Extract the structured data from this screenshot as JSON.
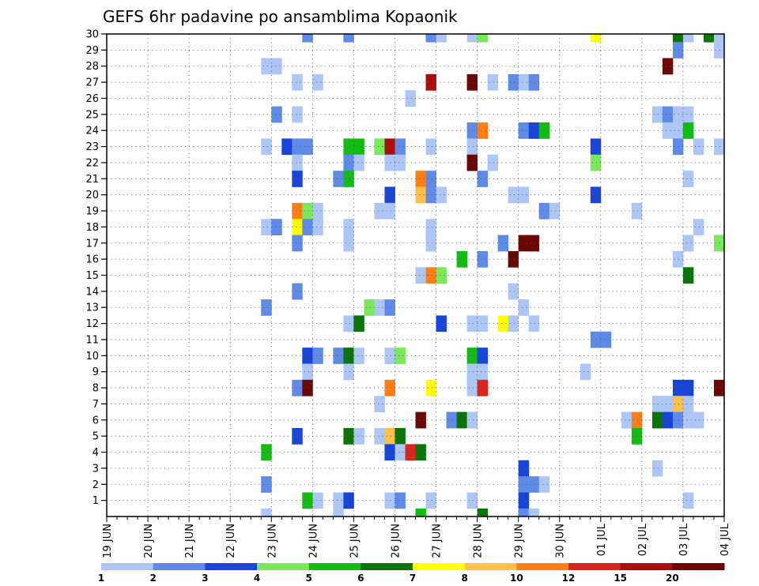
{
  "chart_data": {
    "type": "heatmap",
    "title": "GEFS 6hr padavine po ansamblima Kopaonik",
    "xlabel": "",
    "ylabel": "",
    "x_tick_labels": [
      "19 JUN",
      "20 JUN",
      "21 JUN",
      "22 JUN",
      "23 JUN",
      "24 JUN",
      "25 JUN",
      "26 JUN",
      "27 JUN",
      "28 JUN",
      "29 JUN",
      "30 JUN",
      "01 JUL",
      "02 JUL",
      "03 JUL",
      "04 JUL"
    ],
    "y_tick_labels": [
      "1",
      "2",
      "3",
      "4",
      "5",
      "6",
      "7",
      "8",
      "9",
      "10",
      "11",
      "12",
      "13",
      "14",
      "15",
      "16",
      "17",
      "18",
      "19",
      "20",
      "21",
      "22",
      "23",
      "24",
      "25",
      "26",
      "27",
      "28",
      "29",
      "30"
    ],
    "x_range_days": [
      0,
      15
    ],
    "y_range": [
      0,
      30
    ],
    "time_step_days": 0.25,
    "grid": "dotted",
    "color_levels": [
      "1",
      "2",
      "3",
      "4",
      "5",
      "6",
      "7",
      "8",
      "10",
      "12",
      "15",
      "20"
    ],
    "level_colors": [
      "#aec6f5",
      "#5f8ae8",
      "#1845d8",
      "#7ae85b",
      "#15bb15",
      "#0a730a",
      "#ffff00",
      "#ffc04a",
      "#ff7f14",
      "#d8261b",
      "#a90f0f",
      "#6b0707"
    ],
    "cells": [
      [
        30,
        4.75,
        1
      ],
      [
        30,
        5.75,
        1
      ],
      [
        30,
        7.75,
        1
      ],
      [
        30,
        8,
        0
      ],
      [
        30,
        8.75,
        0
      ],
      [
        30,
        9,
        3
      ],
      [
        30,
        11.75,
        6
      ],
      [
        30,
        13.75,
        5
      ],
      [
        30,
        14,
        0
      ],
      [
        30,
        14.5,
        5
      ],
      [
        30,
        14.75,
        0
      ],
      [
        29,
        13.75,
        1
      ],
      [
        29,
        14.75,
        0
      ],
      [
        29,
        15,
        1
      ],
      [
        28,
        3.75,
        0
      ],
      [
        28,
        4,
        0
      ],
      [
        28,
        13.5,
        11
      ],
      [
        27,
        4.5,
        0
      ],
      [
        27,
        5,
        0
      ],
      [
        27,
        7.75,
        10
      ],
      [
        27,
        8.75,
        11
      ],
      [
        27,
        9.25,
        0
      ],
      [
        27,
        9.75,
        1
      ],
      [
        27,
        10,
        0
      ],
      [
        27,
        10.25,
        1
      ],
      [
        26,
        7.25,
        0
      ],
      [
        25,
        4,
        1
      ],
      [
        25,
        4.5,
        0
      ],
      [
        25,
        13.25,
        0
      ],
      [
        25,
        13.5,
        1
      ],
      [
        25,
        13.75,
        0
      ],
      [
        25,
        14,
        0
      ],
      [
        24,
        8.75,
        1
      ],
      [
        24,
        9,
        8
      ],
      [
        24,
        10,
        1
      ],
      [
        24,
        10.25,
        2
      ],
      [
        24,
        10.5,
        4
      ],
      [
        24,
        13.5,
        0
      ],
      [
        24,
        13.75,
        0
      ],
      [
        24,
        14,
        4
      ],
      [
        23,
        3.75,
        0
      ],
      [
        23,
        4.25,
        2
      ],
      [
        23,
        4.5,
        1
      ],
      [
        23,
        4.75,
        1
      ],
      [
        23,
        5.75,
        4
      ],
      [
        23,
        6,
        4
      ],
      [
        23,
        6.5,
        3
      ],
      [
        23,
        6.75,
        10
      ],
      [
        23,
        7,
        1
      ],
      [
        23,
        7.75,
        0
      ],
      [
        23,
        8.75,
        0
      ],
      [
        23,
        11.75,
        2
      ],
      [
        23,
        13.75,
        1
      ],
      [
        23,
        14.25,
        0
      ],
      [
        23,
        14.75,
        0
      ],
      [
        22,
        4.5,
        0
      ],
      [
        22,
        5.75,
        1
      ],
      [
        22,
        6,
        0
      ],
      [
        22,
        6.75,
        0
      ],
      [
        22,
        7,
        0
      ],
      [
        22,
        8.75,
        11
      ],
      [
        22,
        9.25,
        0
      ],
      [
        22,
        11.75,
        3
      ],
      [
        21,
        4.5,
        2
      ],
      [
        21,
        5.5,
        1
      ],
      [
        21,
        5.75,
        4
      ],
      [
        21,
        7.5,
        8
      ],
      [
        21,
        7.75,
        1
      ],
      [
        21,
        9,
        1
      ],
      [
        21,
        14,
        0
      ],
      [
        20,
        6.75,
        2
      ],
      [
        20,
        7.5,
        7
      ],
      [
        20,
        7.75,
        1
      ],
      [
        20,
        8,
        0
      ],
      [
        20,
        9.75,
        0
      ],
      [
        20,
        10,
        0
      ],
      [
        20,
        11.75,
        2
      ],
      [
        19,
        4.5,
        8
      ],
      [
        19,
        4.75,
        3
      ],
      [
        19,
        5,
        0
      ],
      [
        19,
        6.5,
        0
      ],
      [
        19,
        6.75,
        0
      ],
      [
        19,
        10.5,
        1
      ],
      [
        19,
        10.75,
        0
      ],
      [
        19,
        12.75,
        0
      ],
      [
        19,
        15,
        5
      ],
      [
        18,
        3.75,
        0
      ],
      [
        18,
        4,
        1
      ],
      [
        18,
        4.5,
        6
      ],
      [
        18,
        4.75,
        1
      ],
      [
        18,
        5,
        0
      ],
      [
        18,
        5.75,
        0
      ],
      [
        18,
        7.75,
        0
      ],
      [
        18,
        14.25,
        0
      ],
      [
        17,
        4.5,
        1
      ],
      [
        17,
        5.75,
        0
      ],
      [
        17,
        7.75,
        0
      ],
      [
        17,
        9.5,
        1
      ],
      [
        17,
        10,
        11
      ],
      [
        17,
        10.25,
        11
      ],
      [
        17,
        14,
        0
      ],
      [
        17,
        14.75,
        3
      ],
      [
        17,
        15,
        0
      ],
      [
        16,
        8.5,
        4
      ],
      [
        16,
        9,
        1
      ],
      [
        16,
        9.75,
        11
      ],
      [
        16,
        13.75,
        0
      ],
      [
        16,
        15,
        0
      ],
      [
        15,
        7.5,
        0
      ],
      [
        15,
        7.75,
        8
      ],
      [
        15,
        8,
        3
      ],
      [
        15,
        14,
        5
      ],
      [
        14,
        4.5,
        1
      ],
      [
        14,
        9.75,
        0
      ],
      [
        13,
        3.75,
        1
      ],
      [
        13,
        6.25,
        3
      ],
      [
        13,
        6.5,
        0
      ],
      [
        13,
        6.75,
        1
      ],
      [
        13,
        10,
        0
      ],
      [
        12,
        5.75,
        0
      ],
      [
        12,
        6,
        5
      ],
      [
        12,
        8,
        2
      ],
      [
        12,
        8.75,
        0
      ],
      [
        12,
        9,
        0
      ],
      [
        12,
        9.5,
        6
      ],
      [
        12,
        9.75,
        0
      ],
      [
        12,
        10.25,
        0
      ],
      [
        11,
        11.75,
        1
      ],
      [
        11,
        12,
        1
      ],
      [
        10,
        4.75,
        2
      ],
      [
        10,
        5,
        1
      ],
      [
        10,
        5.5,
        1
      ],
      [
        10,
        5.75,
        5
      ],
      [
        10,
        6,
        0
      ],
      [
        10,
        6.75,
        0
      ],
      [
        10,
        7,
        3
      ],
      [
        10,
        8.75,
        4
      ],
      [
        10,
        9,
        2
      ],
      [
        9,
        4.75,
        0
      ],
      [
        9,
        5.75,
        0
      ],
      [
        9,
        8.75,
        0
      ],
      [
        9,
        9,
        0
      ],
      [
        9,
        11.5,
        0
      ],
      [
        8,
        4.5,
        1
      ],
      [
        8,
        4.75,
        11
      ],
      [
        8,
        6.75,
        8
      ],
      [
        8,
        7.75,
        6
      ],
      [
        8,
        8.75,
        0
      ],
      [
        8,
        9,
        9
      ],
      [
        8,
        13.75,
        2
      ],
      [
        8,
        14,
        2
      ],
      [
        8,
        14.75,
        11
      ],
      [
        8,
        15,
        11
      ],
      [
        7,
        6.5,
        0
      ],
      [
        7,
        13.25,
        0
      ],
      [
        7,
        13.5,
        0
      ],
      [
        7,
        13.75,
        7
      ],
      [
        7,
        14,
        0
      ],
      [
        7,
        15,
        3
      ],
      [
        6,
        7.5,
        11
      ],
      [
        6,
        8.25,
        1
      ],
      [
        6,
        8.5,
        5
      ],
      [
        6,
        8.75,
        0
      ],
      [
        6,
        12.5,
        0
      ],
      [
        6,
        12.75,
        8
      ],
      [
        6,
        13.25,
        5
      ],
      [
        6,
        13.5,
        2
      ],
      [
        6,
        13.75,
        1
      ],
      [
        6,
        14,
        0
      ],
      [
        6,
        14.25,
        0
      ],
      [
        5,
        4.5,
        2
      ],
      [
        5,
        5.75,
        5
      ],
      [
        5,
        6,
        0
      ],
      [
        5,
        6.5,
        0
      ],
      [
        5,
        6.75,
        7
      ],
      [
        5,
        7,
        5
      ],
      [
        5,
        12.75,
        4
      ],
      [
        4,
        3.75,
        4
      ],
      [
        4,
        6.75,
        2
      ],
      [
        4,
        7,
        0
      ],
      [
        4,
        7.25,
        9
      ],
      [
        4,
        7.5,
        5
      ],
      [
        3,
        10,
        2
      ],
      [
        3,
        13.25,
        0
      ],
      [
        2,
        3.75,
        1
      ],
      [
        2,
        10,
        1
      ],
      [
        2,
        10.25,
        1
      ],
      [
        2,
        10.5,
        0
      ],
      [
        1,
        4.75,
        4
      ],
      [
        1,
        5,
        0
      ],
      [
        1,
        5.5,
        0
      ],
      [
        1,
        5.75,
        2
      ],
      [
        1,
        6.75,
        0
      ],
      [
        1,
        7,
        1
      ],
      [
        1,
        7.75,
        0
      ],
      [
        1,
        8.75,
        0
      ],
      [
        1,
        10,
        2
      ],
      [
        1,
        14,
        0
      ],
      [
        0,
        3.75,
        0
      ],
      [
        0,
        5.5,
        0
      ],
      [
        0,
        7.5,
        4
      ],
      [
        0,
        9,
        5
      ],
      [
        0,
        10,
        1
      ],
      [
        0,
        10.25,
        0
      ]
    ]
  }
}
